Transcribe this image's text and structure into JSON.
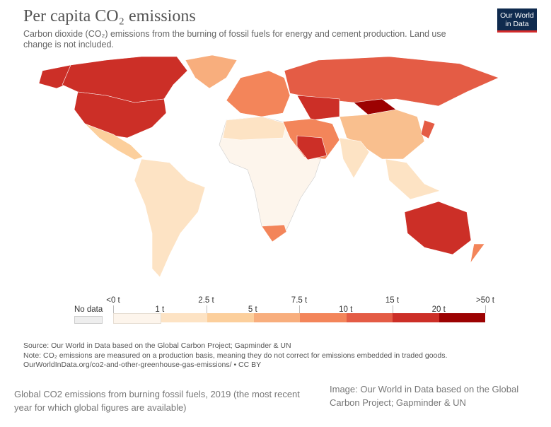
{
  "title": "Per capita CO₂ emissions",
  "subtitle": "Carbon dioxide (CO₂) emissions from the burning of fossil fuels for energy and cement production. Land use change is not included.",
  "logo": {
    "line1": "Our World",
    "line2": "in Data"
  },
  "legend": {
    "no_data": "No data",
    "upper_ticks": [
      "<0 t",
      "2.5 t",
      "7.5 t",
      "15 t",
      ">50 t"
    ],
    "lower_ticks": [
      "1 t",
      "5 t",
      "10 t",
      "20 t"
    ],
    "colors": [
      "#fdf5ec",
      "#fde3c4",
      "#fccf9c",
      "#f8ae7d",
      "#f3855a",
      "#e45c45",
      "#cc2f27",
      "#9c0202"
    ]
  },
  "notes": {
    "source": "Source: Our World in Data based on the Global Carbon Project; Gapminder & UN",
    "note": "Note: CO₂ emissions are measured on a production basis, meaning they do not correct for emissions embedded in traded goods.",
    "url": "OurWorldInData.org/co2-and-other-greenhouse-gas-emissions/ • CC BY"
  },
  "caption": "Global CO2 emissions from burning fossil fuels, 2019 (the most recent year for which global figures are available)",
  "credit": "Image: Our World in Data based on the Global Carbon Project; Gapminder & UN"
}
